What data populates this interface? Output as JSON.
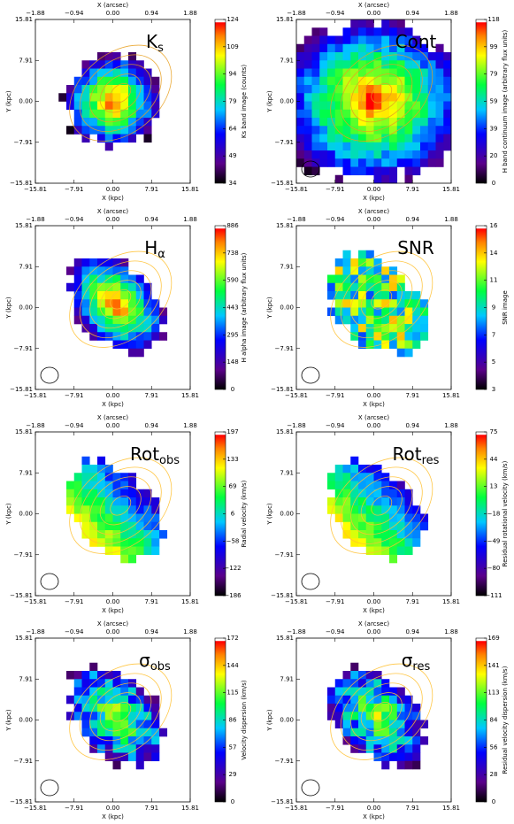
{
  "figure": {
    "axes": {
      "x_top_title": "X (arcsec)",
      "x_top_ticks": [
        "−1.88",
        "−0.94",
        "0.00",
        "0.94",
        "1.88"
      ],
      "x_bottom_title": "X (kpc)",
      "x_bottom_ticks": [
        "−15.81",
        "−7.91",
        "0.00",
        "7.91",
        "15.81"
      ],
      "y_title": "Y (kpc)",
      "y_ticks": [
        "15.81",
        "7.91",
        "0.00",
        "−7.91",
        "−15.81"
      ]
    },
    "panels": [
      {
        "label": "K",
        "label_sub": "s",
        "colorbar_label": "Ks band image (counts)",
        "colorbar_ticks": [
          "124",
          "109",
          "94",
          "79",
          "64",
          "49",
          "34"
        ]
      },
      {
        "label": "Cont",
        "colorbar_label": "H band continuum image (arbitrary flux units)",
        "colorbar_ticks": [
          "118",
          "99",
          "79",
          "59",
          "39",
          "20",
          "0"
        ]
      },
      {
        "label": "H",
        "label_sub": "α",
        "colorbar_label": "H alpha image (arbitrary flux units)",
        "colorbar_ticks": [
          "886",
          "738",
          "590",
          "443",
          "295",
          "148",
          "0"
        ]
      },
      {
        "label": "SNR",
        "colorbar_label": "SNR image",
        "colorbar_ticks": [
          "16",
          "14",
          "11",
          "9",
          "7",
          "5",
          "3"
        ]
      },
      {
        "label": "Rot",
        "label_sub": "obs",
        "colorbar_label": "Radial velocity (km/s)",
        "colorbar_ticks": [
          "197",
          "133",
          "69",
          "6",
          "−58",
          "−122",
          "−186"
        ]
      },
      {
        "label": "Rot",
        "label_sub": "res",
        "colorbar_label": "Residual rotational velocity (km/s)",
        "colorbar_ticks": [
          "75",
          "44",
          "13",
          "−18",
          "−49",
          "−80",
          "−111"
        ]
      },
      {
        "label": "σ",
        "label_sub": "obs",
        "colorbar_label": "Velocity dispersion (km/s)",
        "colorbar_ticks": [
          "172",
          "144",
          "115",
          "86",
          "57",
          "29",
          "0"
        ]
      },
      {
        "label": "σ",
        "label_sub": "res",
        "colorbar_label": "Residual velocity dispersion (km/s)",
        "colorbar_ticks": [
          "169",
          "141",
          "113",
          "84",
          "56",
          "28",
          "0"
        ]
      }
    ]
  }
}
